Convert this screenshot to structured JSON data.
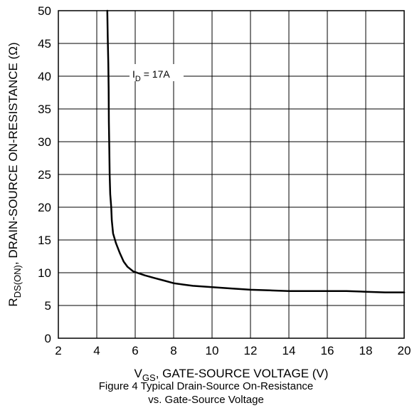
{
  "chart_data": {
    "type": "line",
    "title": "",
    "xlabel": {
      "main": "V",
      "sub": "GS",
      "rest": ", GATE-SOURCE VOLTAGE (V)"
    },
    "ylabel": {
      "main": "R",
      "sub": "DS(ON)",
      "rest": ", DRAIN-SOURCE ON-RESISTANCE (Ω)"
    },
    "xlim": [
      2,
      20
    ],
    "ylim": [
      0,
      50
    ],
    "x_ticks": [
      "2",
      "4",
      "6",
      "8",
      "10",
      "12",
      "14",
      "16",
      "18",
      "20"
    ],
    "y_ticks": [
      "0",
      "5",
      "10",
      "15",
      "20",
      "25",
      "30",
      "35",
      "40",
      "45",
      "50"
    ],
    "grid": true,
    "annotation": {
      "main": "I",
      "sub": "D",
      "rest": " = 17A"
    },
    "series": [
      {
        "name": "",
        "color": "#000000",
        "points": [
          [
            4.55,
            50
          ],
          [
            4.57,
            46
          ],
          [
            4.6,
            42
          ],
          [
            4.62,
            38
          ],
          [
            4.63,
            33
          ],
          [
            4.65,
            29
          ],
          [
            4.67,
            25
          ],
          [
            4.7,
            22
          ],
          [
            4.75,
            20
          ],
          [
            4.78,
            18
          ],
          [
            4.85,
            16
          ],
          [
            5.0,
            14.5
          ],
          [
            5.2,
            13
          ],
          [
            5.4,
            11.7
          ],
          [
            5.6,
            10.9
          ],
          [
            5.9,
            10.2
          ],
          [
            6.5,
            9.6
          ],
          [
            7.0,
            9.2
          ],
          [
            7.5,
            8.8
          ],
          [
            8.0,
            8.4
          ],
          [
            8.5,
            8.2
          ],
          [
            9.0,
            8.0
          ],
          [
            10.0,
            7.8
          ],
          [
            11.0,
            7.6
          ],
          [
            12.0,
            7.4
          ],
          [
            13.0,
            7.3
          ],
          [
            14.0,
            7.2
          ],
          [
            15.0,
            7.2
          ],
          [
            16.0,
            7.2
          ],
          [
            17.0,
            7.2
          ],
          [
            18.0,
            7.1
          ],
          [
            19.0,
            7.0
          ],
          [
            20.0,
            7.0
          ]
        ]
      }
    ]
  },
  "caption": {
    "line1": "Figure 4 Typical Drain-Source On-Resistance",
    "line2": "vs. Gate-Source Voltage"
  }
}
